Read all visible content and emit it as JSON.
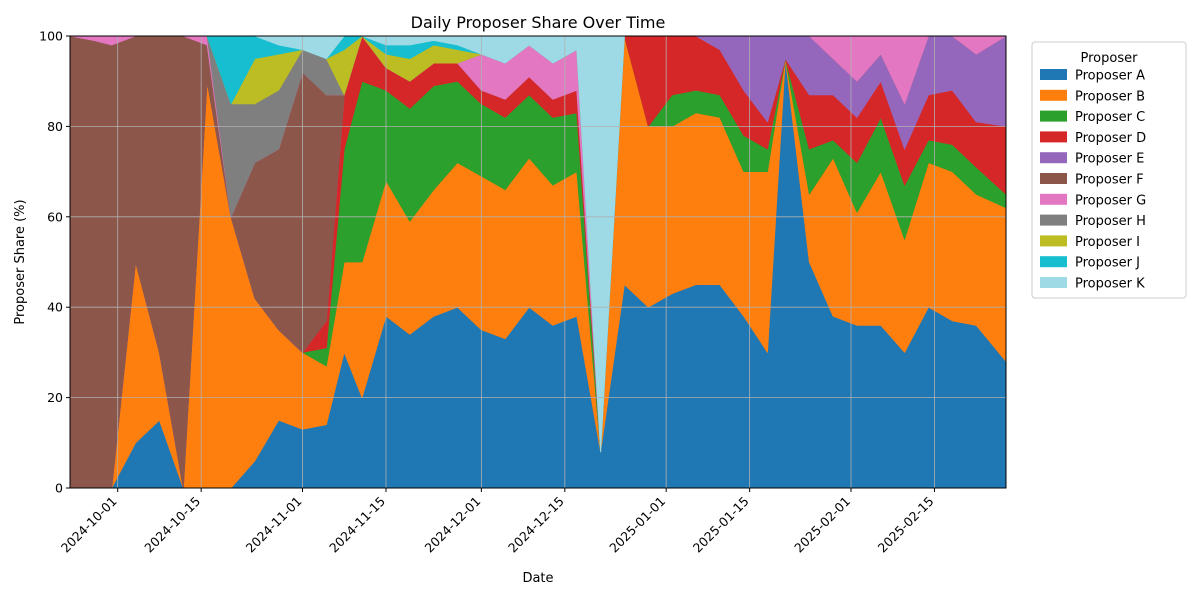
{
  "chart_data": {
    "type": "area",
    "stacked": true,
    "title": "Daily Proposer Share Over Time",
    "xlabel": "Date",
    "ylabel": "Proposer Share (%)",
    "ylim": [
      0,
      100
    ],
    "xlim": [
      "2024-09-23",
      "2025-02-27"
    ],
    "x_ticks": [
      "2024-10-01",
      "2024-10-15",
      "2024-11-01",
      "2024-11-15",
      "2024-12-01",
      "2024-12-15",
      "2025-01-01",
      "2025-01-15",
      "2025-02-01",
      "2025-02-15"
    ],
    "y_ticks": [
      0,
      20,
      40,
      60,
      80,
      100
    ],
    "grid": true,
    "legend": {
      "title": "Proposer",
      "placement": "outside-right"
    },
    "x": [
      "2024-09-23",
      "2024-09-27",
      "2024-09-30",
      "2024-10-04",
      "2024-10-08",
      "2024-10-12",
      "2024-10-16",
      "2024-10-20",
      "2024-10-24",
      "2024-10-28",
      "2024-11-01",
      "2024-11-05",
      "2024-11-08",
      "2024-11-11",
      "2024-11-15",
      "2024-11-19",
      "2024-11-23",
      "2024-11-27",
      "2024-12-01",
      "2024-12-05",
      "2024-12-09",
      "2024-12-13",
      "2024-12-17",
      "2024-12-21",
      "2024-12-25",
      "2024-12-29",
      "2025-01-02",
      "2025-01-06",
      "2025-01-10",
      "2025-01-14",
      "2025-01-18",
      "2025-01-21",
      "2025-01-25",
      "2025-01-29",
      "2025-02-02",
      "2025-02-06",
      "2025-02-10",
      "2025-02-14",
      "2025-02-18",
      "2025-02-22",
      "2025-02-27"
    ],
    "series": [
      {
        "name": "Proposer A",
        "color": "#1f77b4",
        "values": [
          0,
          0,
          0,
          10,
          15,
          0,
          0,
          0,
          6,
          15,
          13,
          14,
          30,
          20,
          38,
          34,
          38,
          40,
          35,
          33,
          40,
          36,
          38,
          8,
          45,
          40,
          43,
          45,
          45,
          38,
          30,
          95,
          50,
          38,
          36,
          36,
          30,
          40,
          37,
          36,
          28
        ]
      },
      {
        "name": "Proposer B",
        "color": "#ff7f0e",
        "values": [
          0,
          0,
          0,
          40,
          15,
          0,
          90,
          60,
          36,
          20,
          17,
          13,
          20,
          30,
          30,
          25,
          28,
          32,
          34,
          33,
          33,
          31,
          32,
          0,
          55,
          40,
          37,
          38,
          37,
          32,
          40,
          0,
          15,
          35,
          25,
          34,
          25,
          32,
          33,
          29,
          34
        ]
      },
      {
        "name": "Proposer C",
        "color": "#2ca02c",
        "values": [
          0,
          0,
          0,
          0,
          0,
          0,
          0,
          0,
          0,
          0,
          0,
          4,
          25,
          40,
          20,
          25,
          23,
          18,
          16,
          16,
          14,
          15,
          13,
          0,
          0,
          0,
          7,
          5,
          5,
          8,
          5,
          0,
          10,
          4,
          11,
          12,
          12,
          5,
          6,
          6,
          3
        ]
      },
      {
        "name": "Proposer D",
        "color": "#d62728",
        "values": [
          0,
          0,
          0,
          0,
          0,
          0,
          0,
          0,
          0,
          0,
          0,
          6,
          12,
          10,
          5,
          6,
          5,
          4,
          3,
          4,
          4,
          4,
          5,
          0,
          0,
          20,
          13,
          12,
          10,
          10,
          6,
          0,
          12,
          10,
          10,
          8,
          8,
          10,
          12,
          10,
          15
        ]
      },
      {
        "name": "Proposer E",
        "color": "#9467bd",
        "values": [
          0,
          0,
          0,
          0,
          0,
          0,
          0,
          0,
          0,
          0,
          0,
          0,
          0,
          0,
          0,
          0,
          0,
          0,
          0,
          0,
          0,
          0,
          0,
          0,
          0,
          0,
          0,
          0,
          3,
          12,
          19,
          5,
          13,
          8,
          8,
          6,
          10,
          13,
          12,
          15,
          20
        ]
      },
      {
        "name": "Proposer F",
        "color": "#8c564b",
        "values": [
          100,
          99,
          98,
          50,
          70,
          100,
          8,
          0,
          30,
          40,
          62,
          50,
          0,
          0,
          0,
          0,
          0,
          0,
          0,
          0,
          0,
          0,
          0,
          0,
          0,
          0,
          0,
          0,
          0,
          0,
          0,
          0,
          0,
          0,
          0,
          0,
          0,
          0,
          0,
          0,
          0
        ]
      },
      {
        "name": "Proposer G",
        "color": "#e377c2",
        "values": [
          0,
          1,
          2,
          0,
          0,
          0,
          2,
          0,
          0,
          0,
          0,
          0,
          0,
          0,
          0,
          0,
          0,
          0,
          8,
          8,
          7,
          8,
          9,
          0,
          0,
          0,
          0,
          0,
          0,
          0,
          0,
          0,
          0,
          5,
          10,
          4,
          15,
          0,
          0,
          4,
          0
        ]
      },
      {
        "name": "Proposer H",
        "color": "#7f7f7f",
        "values": [
          0,
          0,
          0,
          0,
          0,
          0,
          0,
          25,
          13,
          13,
          5,
          8,
          0,
          0,
          0,
          0,
          0,
          0,
          0,
          0,
          0,
          0,
          0,
          0,
          0,
          0,
          0,
          0,
          0,
          0,
          0,
          0,
          0,
          0,
          0,
          0,
          0,
          0,
          0,
          0,
          0
        ]
      },
      {
        "name": "Proposer I",
        "color": "#bcbd22",
        "values": [
          0,
          0,
          0,
          0,
          0,
          0,
          0,
          0,
          10,
          8,
          0,
          0,
          10,
          0,
          3,
          5,
          4,
          3,
          0,
          0,
          0,
          0,
          0,
          0,
          0,
          0,
          0,
          0,
          0,
          0,
          0,
          0,
          0,
          0,
          0,
          0,
          0,
          0,
          0,
          0,
          0
        ]
      },
      {
        "name": "Proposer J",
        "color": "#17becf",
        "values": [
          0,
          0,
          0,
          0,
          0,
          0,
          0,
          15,
          5,
          2,
          0,
          0,
          3,
          0,
          2,
          3,
          1,
          1,
          0,
          0,
          0,
          0,
          0,
          0,
          0,
          0,
          0,
          0,
          0,
          0,
          0,
          0,
          0,
          0,
          0,
          0,
          0,
          0,
          0,
          0,
          0
        ]
      },
      {
        "name": "Proposer K",
        "color": "#9edae5",
        "values": [
          0,
          0,
          0,
          0,
          0,
          0,
          0,
          0,
          0,
          2,
          3,
          5,
          0,
          0,
          2,
          2,
          1,
          2,
          4,
          6,
          2,
          6,
          3,
          92,
          0,
          0,
          0,
          0,
          0,
          0,
          0,
          0,
          0,
          0,
          0,
          0,
          0,
          0,
          0,
          0,
          0
        ]
      }
    ]
  }
}
